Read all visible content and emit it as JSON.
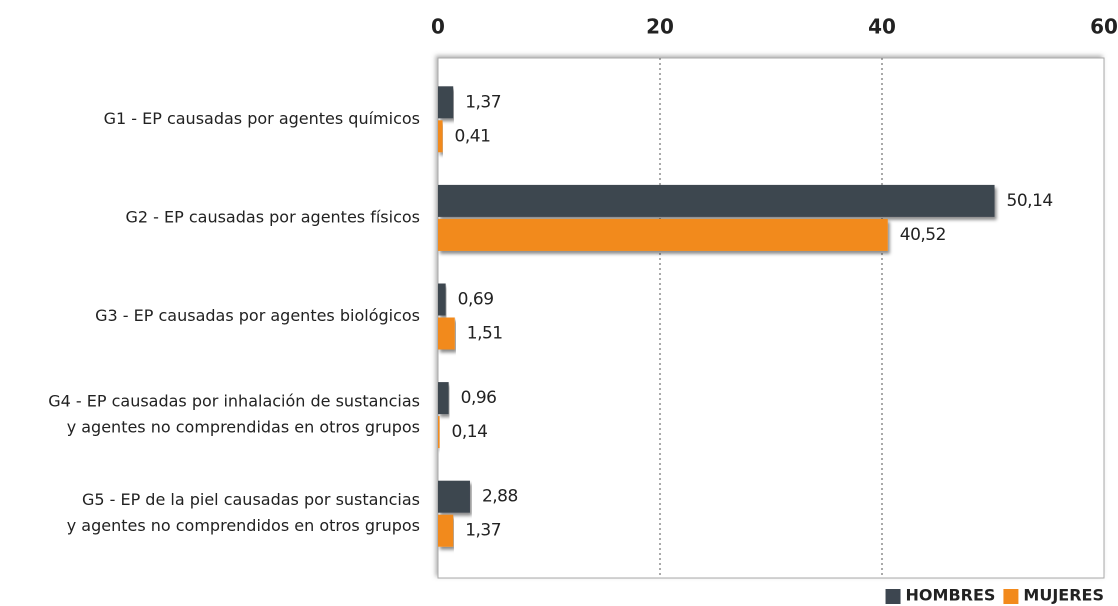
{
  "chart_data": {
    "type": "hbar",
    "categories": [
      [
        "G1 - EP causadas por agentes químicos"
      ],
      [
        "G2 - EP causadas por agentes físicos"
      ],
      [
        "G3 - EP causadas por agentes biológicos"
      ],
      [
        "G4 - EP causadas por inhalación de sustancias",
        "y agentes no comprendidas en otros grupos"
      ],
      [
        "G5 - EP de la piel causadas por sustancias",
        "y agentes no comprendidos en otros grupos"
      ]
    ],
    "series": [
      {
        "name": "HOMBRES",
        "color": "#3d4650",
        "values": [
          1.37,
          50.14,
          0.69,
          0.96,
          2.88
        ],
        "value_labels": [
          "1,37",
          "50,14",
          "0,69",
          "0,96",
          "2,88"
        ]
      },
      {
        "name": "MUJERES",
        "color": "#f28a1c",
        "values": [
          0.41,
          40.52,
          1.51,
          0.14,
          1.37
        ],
        "value_labels": [
          "0,41",
          "40,52",
          "1,51",
          "0,14",
          "1,37"
        ]
      }
    ],
    "xlim": [
      0,
      60
    ],
    "xticks": [
      0,
      20,
      40,
      60
    ],
    "grid": true,
    "legend": "bottom-right"
  }
}
